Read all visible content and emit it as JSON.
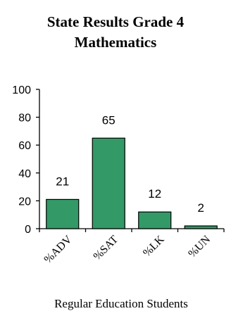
{
  "chart_data": {
    "type": "bar",
    "title_lines": [
      "State Results Grade 4",
      "Mathematics"
    ],
    "categories": [
      "%ADV",
      "%SAT",
      "%LK",
      "%UN"
    ],
    "values": [
      21,
      65,
      12,
      2
    ],
    "data_labels": [
      "21",
      "65",
      "12",
      "2"
    ],
    "xlabel": "Regular Education Students",
    "ylabel": "",
    "ylim": [
      0,
      100
    ],
    "yticks": [
      "0",
      "20",
      "40",
      "60",
      "80",
      "100"
    ],
    "bar_color": "#339966",
    "grid": false,
    "legend": "none"
  }
}
